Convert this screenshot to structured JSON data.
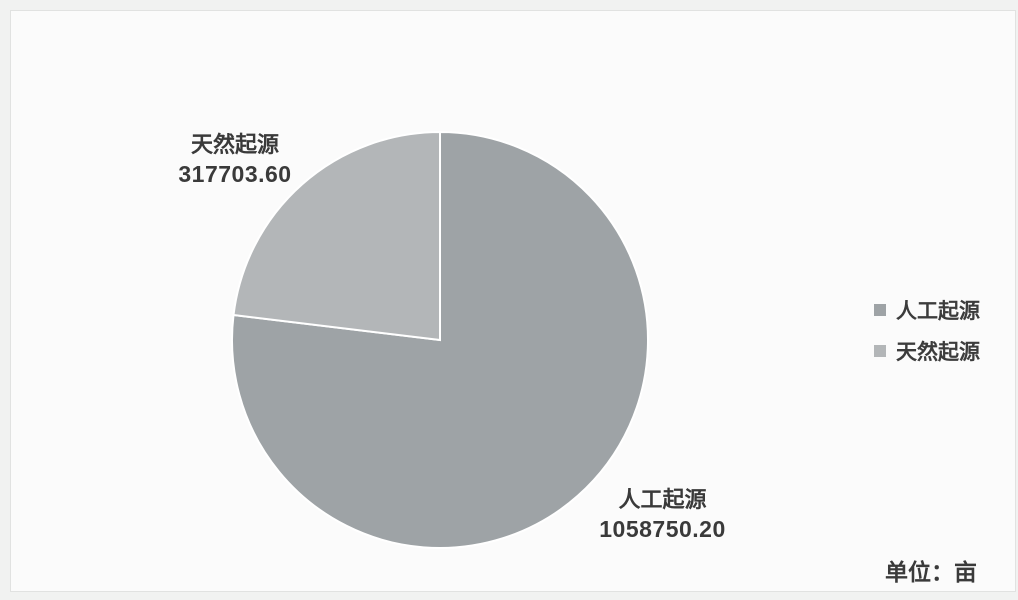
{
  "chart_data": {
    "type": "pie",
    "categories": [
      "人工起源",
      "天然起源"
    ],
    "values": [
      1058750.2,
      317703.6
    ],
    "value_labels": [
      "1058750.20",
      "317703.60"
    ],
    "legend": [
      "人工起源",
      "天然起源"
    ],
    "legend_position": "right",
    "unit": "单位：亩",
    "colors": [
      "#9ea3a6",
      "#b3b6b8"
    ]
  }
}
